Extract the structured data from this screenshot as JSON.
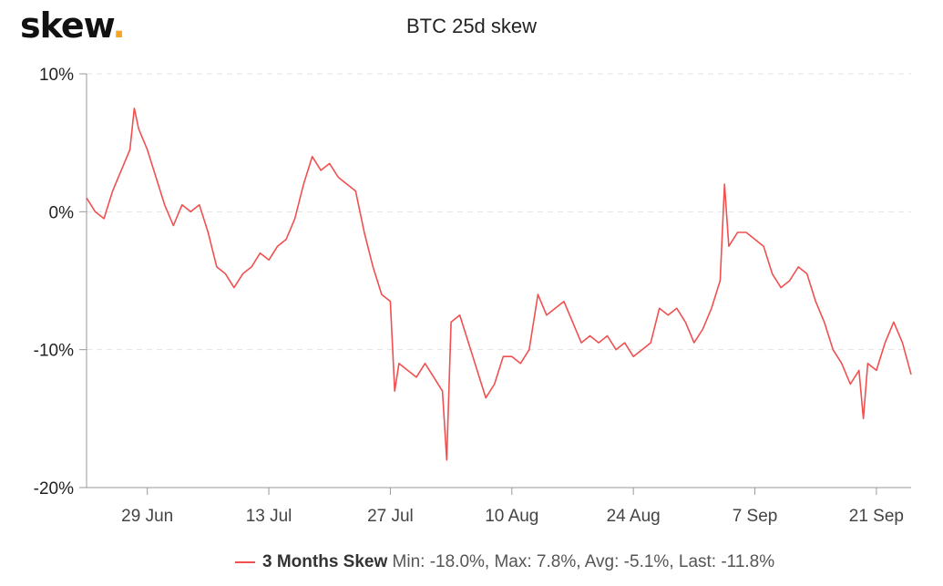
{
  "logo": {
    "text": "skew",
    "dot": "."
  },
  "chart_data": {
    "type": "line",
    "title": "BTC 25d skew",
    "xlabel": "",
    "ylabel": "",
    "ylim": [
      -20,
      10
    ],
    "yticks": [
      {
        "value": 10,
        "label": "10%"
      },
      {
        "value": 0,
        "label": "0%"
      },
      {
        "value": -10,
        "label": "-10%"
      },
      {
        "value": -20,
        "label": "-20%"
      }
    ],
    "xlim": [
      "2020-06-22",
      "2020-09-25"
    ],
    "xticks": [
      {
        "date": "2020-06-29",
        "label": "29 Jun"
      },
      {
        "date": "2020-07-13",
        "label": "13 Jul"
      },
      {
        "date": "2020-07-27",
        "label": "27 Jul"
      },
      {
        "date": "2020-08-10",
        "label": "10 Aug"
      },
      {
        "date": "2020-08-24",
        "label": "24 Aug"
      },
      {
        "date": "2020-09-07",
        "label": "7 Sep"
      },
      {
        "date": "2020-09-21",
        "label": "21 Sep"
      }
    ],
    "grid": true,
    "legend_position": "bottom",
    "series": [
      {
        "name": "3 Months Skew",
        "color": "#f05050",
        "stats_text": "Min: -18.0%, Max: 7.8%, Avg: -5.1%, Last: -11.8%",
        "points": [
          [
            "2020-06-22",
            1.0
          ],
          [
            "2020-06-23",
            0.0
          ],
          [
            "2020-06-24",
            -0.5
          ],
          [
            "2020-06-25",
            1.5
          ],
          [
            "2020-06-26",
            3.0
          ],
          [
            "2020-06-27",
            4.5
          ],
          [
            "2020-06-27T12",
            7.5
          ],
          [
            "2020-06-28",
            6.0
          ],
          [
            "2020-06-29",
            4.5
          ],
          [
            "2020-06-30",
            2.5
          ],
          [
            "2020-07-01",
            0.5
          ],
          [
            "2020-07-02",
            -1.0
          ],
          [
            "2020-07-03",
            0.5
          ],
          [
            "2020-07-04",
            0.0
          ],
          [
            "2020-07-05",
            0.5
          ],
          [
            "2020-07-06",
            -1.5
          ],
          [
            "2020-07-07",
            -4.0
          ],
          [
            "2020-07-08",
            -4.5
          ],
          [
            "2020-07-09",
            -5.5
          ],
          [
            "2020-07-10",
            -4.5
          ],
          [
            "2020-07-11",
            -4.0
          ],
          [
            "2020-07-12",
            -3.0
          ],
          [
            "2020-07-13",
            -3.5
          ],
          [
            "2020-07-14",
            -2.5
          ],
          [
            "2020-07-15",
            -2.0
          ],
          [
            "2020-07-16",
            -0.5
          ],
          [
            "2020-07-17",
            2.0
          ],
          [
            "2020-07-18",
            4.0
          ],
          [
            "2020-07-19",
            3.0
          ],
          [
            "2020-07-20",
            3.5
          ],
          [
            "2020-07-21",
            2.5
          ],
          [
            "2020-07-22",
            2.0
          ],
          [
            "2020-07-23",
            1.5
          ],
          [
            "2020-07-24",
            -1.5
          ],
          [
            "2020-07-25",
            -4.0
          ],
          [
            "2020-07-26",
            -6.0
          ],
          [
            "2020-07-27",
            -6.5
          ],
          [
            "2020-07-27T12",
            -13.0
          ],
          [
            "2020-07-28",
            -11.0
          ],
          [
            "2020-07-29",
            -11.5
          ],
          [
            "2020-07-30",
            -12.0
          ],
          [
            "2020-07-31",
            -11.0
          ],
          [
            "2020-08-01",
            -12.0
          ],
          [
            "2020-08-02",
            -13.0
          ],
          [
            "2020-08-02T12",
            -18.0
          ],
          [
            "2020-08-03",
            -8.0
          ],
          [
            "2020-08-04",
            -7.5
          ],
          [
            "2020-08-05",
            -9.5
          ],
          [
            "2020-08-06",
            -11.5
          ],
          [
            "2020-08-07",
            -13.5
          ],
          [
            "2020-08-08",
            -12.5
          ],
          [
            "2020-08-09",
            -10.5
          ],
          [
            "2020-08-10",
            -10.5
          ],
          [
            "2020-08-11",
            -11.0
          ],
          [
            "2020-08-12",
            -10.0
          ],
          [
            "2020-08-13",
            -6.0
          ],
          [
            "2020-08-14",
            -7.5
          ],
          [
            "2020-08-15",
            -7.0
          ],
          [
            "2020-08-16",
            -6.5
          ],
          [
            "2020-08-17",
            -8.0
          ],
          [
            "2020-08-18",
            -9.5
          ],
          [
            "2020-08-19",
            -9.0
          ],
          [
            "2020-08-20",
            -9.5
          ],
          [
            "2020-08-21",
            -9.0
          ],
          [
            "2020-08-22",
            -10.0
          ],
          [
            "2020-08-23",
            -9.5
          ],
          [
            "2020-08-24",
            -10.5
          ],
          [
            "2020-08-25",
            -10.0
          ],
          [
            "2020-08-26",
            -9.5
          ],
          [
            "2020-08-27",
            -7.0
          ],
          [
            "2020-08-28",
            -7.5
          ],
          [
            "2020-08-29",
            -7.0
          ],
          [
            "2020-08-30",
            -8.0
          ],
          [
            "2020-08-31",
            -9.5
          ],
          [
            "2020-09-01",
            -8.5
          ],
          [
            "2020-09-02",
            -7.0
          ],
          [
            "2020-09-03",
            -5.0
          ],
          [
            "2020-09-03T12",
            2.0
          ],
          [
            "2020-09-04",
            -2.5
          ],
          [
            "2020-09-05",
            -1.5
          ],
          [
            "2020-09-06",
            -1.5
          ],
          [
            "2020-09-07",
            -2.0
          ],
          [
            "2020-09-08",
            -2.5
          ],
          [
            "2020-09-09",
            -4.5
          ],
          [
            "2020-09-10",
            -5.5
          ],
          [
            "2020-09-11",
            -5.0
          ],
          [
            "2020-09-12",
            -4.0
          ],
          [
            "2020-09-13",
            -4.5
          ],
          [
            "2020-09-14",
            -6.5
          ],
          [
            "2020-09-15",
            -8.0
          ],
          [
            "2020-09-16",
            -10.0
          ],
          [
            "2020-09-17",
            -11.0
          ],
          [
            "2020-09-18",
            -12.5
          ],
          [
            "2020-09-19",
            -11.5
          ],
          [
            "2020-09-19T12",
            -15.0
          ],
          [
            "2020-09-20",
            -11.0
          ],
          [
            "2020-09-21",
            -11.5
          ],
          [
            "2020-09-22",
            -9.5
          ],
          [
            "2020-09-23",
            -8.0
          ],
          [
            "2020-09-24",
            -9.5
          ],
          [
            "2020-09-25",
            -11.8
          ]
        ]
      }
    ]
  }
}
